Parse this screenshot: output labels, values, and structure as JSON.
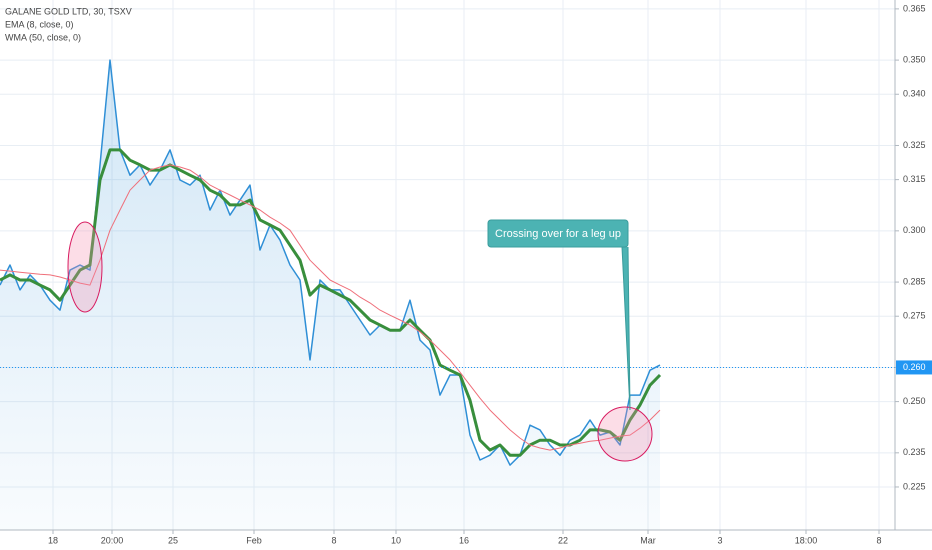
{
  "chart_data": {
    "type": "line",
    "x": [
      0,
      1,
      2,
      3,
      4,
      5,
      6,
      7,
      8,
      9,
      10,
      11,
      12,
      13,
      14,
      15,
      16,
      17,
      18,
      19,
      20,
      21,
      22,
      23,
      24,
      25,
      26,
      27,
      28,
      29,
      30,
      31,
      32,
      33,
      34,
      35,
      36,
      37,
      38,
      39,
      40,
      41,
      42,
      43,
      44,
      45,
      46,
      47,
      48,
      49,
      50,
      51,
      52,
      53,
      54,
      55,
      56,
      57,
      58,
      59,
      60,
      61,
      62,
      63,
      64,
      65,
      66
    ],
    "series": [
      {
        "name": "GALANE GOLD LTD, 30, TSXV",
        "color": "#2f8fd6",
        "area": true,
        "width": 1.5,
        "values": [
          0.2841,
          0.29,
          0.2827,
          0.2871,
          0.2841,
          0.2797,
          0.2768,
          0.2885,
          0.29,
          0.2885,
          0.3193,
          0.35,
          0.3237,
          0.3163,
          0.3193,
          0.3134,
          0.3178,
          0.3237,
          0.3149,
          0.3134,
          0.3163,
          0.3061,
          0.3119,
          0.3046,
          0.309,
          0.3134,
          0.2944,
          0.3017,
          0.2973,
          0.29,
          0.2856,
          0.2622,
          0.2856,
          0.2827,
          0.2827,
          0.2783,
          0.2739,
          0.2695,
          0.2724,
          0.2709,
          0.2709,
          0.2797,
          0.268,
          0.2651,
          0.2519,
          0.2578,
          0.2578,
          0.2402,
          0.2329,
          0.2343,
          0.2373,
          0.2314,
          0.2343,
          0.2431,
          0.2417,
          0.2373,
          0.2343,
          0.2387,
          0.2402,
          0.2446,
          0.2402,
          0.2411,
          0.2373,
          0.2519,
          0.2519,
          0.2592,
          0.2607
        ]
      },
      {
        "name": "EMA (8, close, 0)",
        "color": "#388e3c",
        "width": 3,
        "values": [
          0.2856,
          0.2871,
          0.2856,
          0.2856,
          0.2841,
          0.2827,
          0.2797,
          0.2841,
          0.2885,
          0.29,
          0.3149,
          0.3237,
          0.3237,
          0.3207,
          0.3193,
          0.3178,
          0.3178,
          0.3193,
          0.3178,
          0.3163,
          0.3149,
          0.3119,
          0.3105,
          0.3076,
          0.3076,
          0.309,
          0.3032,
          0.3017,
          0.3002,
          0.2958,
          0.2914,
          0.2812,
          0.2841,
          0.2827,
          0.2812,
          0.2797,
          0.2768,
          0.2739,
          0.2724,
          0.2709,
          0.2709,
          0.2739,
          0.2709,
          0.268,
          0.2607,
          0.2592,
          0.2578,
          0.2504,
          0.2387,
          0.2358,
          0.2373,
          0.2343,
          0.2343,
          0.2373,
          0.2387,
          0.2387,
          0.2373,
          0.2373,
          0.2387,
          0.2417,
          0.2417,
          0.2411,
          0.2387,
          0.2446,
          0.249,
          0.2548,
          0.2578
        ]
      },
      {
        "name": "WMA (50, close, 0)",
        "color": "#ef6f7a",
        "width": 1,
        "values": [
          0.2885,
          0.2882,
          0.2879,
          0.2876,
          0.2873,
          0.2871,
          0.2865,
          0.2856,
          0.2847,
          0.2841,
          0.2914,
          0.3002,
          0.3061,
          0.3119,
          0.3149,
          0.3178,
          0.3187,
          0.3193,
          0.3187,
          0.3178,
          0.3158,
          0.3134,
          0.3119,
          0.3105,
          0.309,
          0.3076,
          0.3061,
          0.304,
          0.3023,
          0.3002,
          0.2958,
          0.2914,
          0.2885,
          0.2856,
          0.2841,
          0.2827,
          0.2806,
          0.2789,
          0.2768,
          0.2753,
          0.2739,
          0.2724,
          0.2704,
          0.268,
          0.2651,
          0.2622,
          0.2586,
          0.2548,
          0.251,
          0.2475,
          0.2446,
          0.2417,
          0.2393,
          0.2373,
          0.2364,
          0.2358,
          0.2364,
          0.2373,
          0.2378,
          0.2384,
          0.2387,
          0.2393,
          0.2399,
          0.2402,
          0.2422,
          0.2446,
          0.2475
        ]
      }
    ],
    "xlim": [
      0,
      89.5
    ],
    "xticks": [
      {
        "value": 5.3,
        "label": "18"
      },
      {
        "value": 11.2,
        "label": "20:00"
      },
      {
        "value": 17.3,
        "label": "25"
      },
      {
        "value": 25.4,
        "label": "Feb"
      },
      {
        "value": 33.4,
        "label": "8"
      },
      {
        "value": 39.6,
        "label": "10"
      },
      {
        "value": 46.4,
        "label": "16"
      },
      {
        "value": 56.3,
        "label": "22"
      },
      {
        "value": 64.8,
        "label": "Mar"
      },
      {
        "value": 72,
        "label": "3"
      },
      {
        "value": 80.6,
        "label": "18:00"
      },
      {
        "value": 87.9,
        "label": "8"
      }
    ],
    "ylim": [
      0.2124,
      0.3676
    ],
    "yticks": [
      {
        "value": 0.225,
        "label": "0.225"
      },
      {
        "value": 0.235,
        "label": "0.235"
      },
      {
        "value": 0.25,
        "label": "0.250"
      },
      {
        "value": 0.26,
        "label": "0.260"
      },
      {
        "value": 0.275,
        "label": "0.275"
      },
      {
        "value": 0.285,
        "label": "0.285"
      },
      {
        "value": 0.3,
        "label": "0.300"
      },
      {
        "value": 0.315,
        "label": "0.315"
      },
      {
        "value": 0.325,
        "label": "0.325"
      },
      {
        "value": 0.34,
        "label": "0.340"
      },
      {
        "value": 0.35,
        "label": "0.350"
      },
      {
        "value": 0.365,
        "label": "0.365"
      }
    ],
    "last_price": {
      "value": 0.26,
      "label": "0.260"
    },
    "grid": true,
    "legend": "top-left",
    "annotation": "Crossing over for a leg up"
  }
}
